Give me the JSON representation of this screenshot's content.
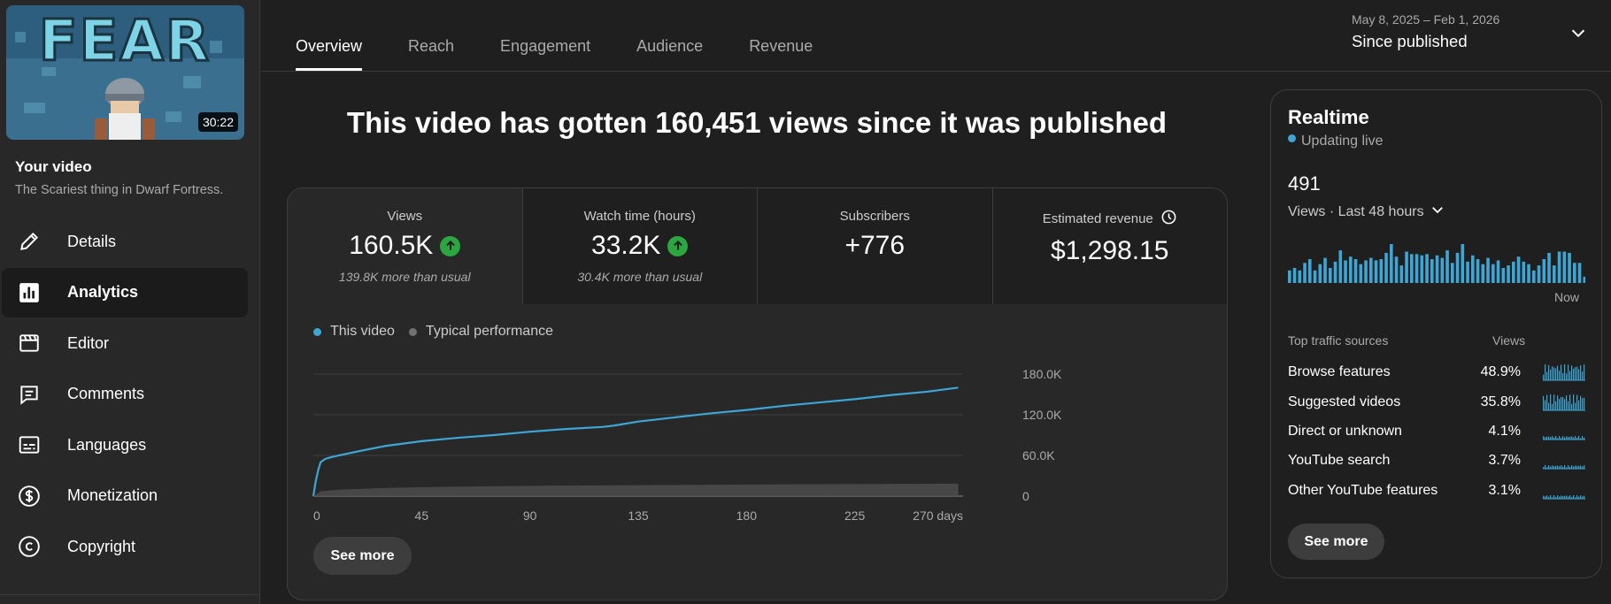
{
  "sidebar": {
    "thumbnail": {
      "logo_text": "FEAR",
      "duration": "30:22"
    },
    "your_video_label": "Your video",
    "video_title": "The Scariest thing in Dwarf Fortress.",
    "items": [
      {
        "label": "Details",
        "icon": "pencil-icon",
        "active": false
      },
      {
        "label": "Analytics",
        "icon": "analytics-icon",
        "active": true
      },
      {
        "label": "Editor",
        "icon": "clapperboard-icon",
        "active": false
      },
      {
        "label": "Comments",
        "icon": "comment-icon",
        "active": false
      },
      {
        "label": "Languages",
        "icon": "subtitles-icon",
        "active": false
      },
      {
        "label": "Monetization",
        "icon": "dollar-icon",
        "active": false
      },
      {
        "label": "Copyright",
        "icon": "copyright-icon",
        "active": false
      }
    ]
  },
  "tabs": [
    {
      "label": "Overview",
      "active": true
    },
    {
      "label": "Reach",
      "active": false
    },
    {
      "label": "Engagement",
      "active": false
    },
    {
      "label": "Audience",
      "active": false
    },
    {
      "label": "Revenue",
      "active": false
    }
  ],
  "date_picker": {
    "range": "May 8, 2025 – Feb 1, 2026",
    "label": "Since published"
  },
  "headline": "This video has gotten 160,451 views since it was published",
  "metrics": [
    {
      "label": "Views",
      "value": "160.5K",
      "trend": "up",
      "sub": "139.8K more than usual"
    },
    {
      "label": "Watch time (hours)",
      "value": "33.2K",
      "trend": "up",
      "sub": "30.4K more than usual"
    },
    {
      "label": "Subscribers",
      "value": "+776",
      "trend": "",
      "sub": ""
    },
    {
      "label": "Estimated revenue",
      "value": "$1,298.15",
      "trend": "",
      "sub": "",
      "icon": "clock-icon"
    }
  ],
  "legend": [
    {
      "label": "This video",
      "color": "#3ea6d4"
    },
    {
      "label": "Typical performance",
      "color": "#717171"
    }
  ],
  "chart_data": {
    "type": "line",
    "x_ticks": [
      "0",
      "45",
      "90",
      "135",
      "180",
      "225",
      "270 days"
    ],
    "y_ticks": [
      "0",
      "60.0K",
      "120.0K",
      "180.0K"
    ],
    "xlim": [
      0,
      270
    ],
    "ylim": [
      0,
      180000
    ],
    "series": [
      {
        "name": "This video",
        "color": "#3ea6d4",
        "x": [
          0,
          1,
          2,
          3,
          5,
          8,
          12,
          20,
          30,
          45,
          60,
          75,
          90,
          105,
          120,
          125,
          135,
          150,
          165,
          180,
          195,
          210,
          225,
          240,
          255,
          268
        ],
        "y": [
          0,
          22000,
          38000,
          50000,
          55000,
          58000,
          61000,
          67000,
          74000,
          81000,
          86000,
          90000,
          95000,
          99000,
          102000,
          104000,
          110000,
          116000,
          122000,
          127000,
          133000,
          138000,
          143000,
          149000,
          154000,
          160000
        ]
      },
      {
        "name": "Typical performance",
        "color": "#717171",
        "x": [
          0,
          3,
          10,
          30,
          60,
          100,
          150,
          200,
          268
        ],
        "y": [
          0,
          7000,
          9500,
          12000,
          14000,
          15500,
          16500,
          17500,
          18500
        ]
      }
    ]
  },
  "see_more_label": "See more",
  "realtime": {
    "title": "Realtime",
    "status": "Updating live",
    "count": "491",
    "period": "Views · Last 48 hours",
    "now_label": "Now",
    "bar_color": "#3ea6d4",
    "bars": [
      10,
      12,
      10,
      16,
      19,
      10,
      15,
      20,
      12,
      17,
      26,
      18,
      21,
      19,
      15,
      18,
      20,
      18,
      19,
      24,
      31,
      21,
      14,
      25,
      23,
      23,
      22,
      23,
      19,
      22,
      20,
      26,
      16,
      24,
      31,
      17,
      22,
      19,
      15,
      20,
      15,
      18,
      12,
      14,
      17,
      21,
      17,
      15,
      10,
      14,
      19,
      24,
      14,
      25,
      25,
      24,
      16,
      16,
      5
    ],
    "traffic_header": {
      "source": "Top traffic sources",
      "views": "Views"
    },
    "traffic": [
      {
        "source": "Browse features",
        "pct": "48.9%",
        "level": 0.489
      },
      {
        "source": "Suggested videos",
        "pct": "35.8%",
        "level": 0.358
      },
      {
        "source": "Direct or unknown",
        "pct": "4.1%",
        "level": 0.041
      },
      {
        "source": "YouTube search",
        "pct": "3.7%",
        "level": 0.037
      },
      {
        "source": "Other YouTube features",
        "pct": "3.1%",
        "level": 0.031
      }
    ]
  }
}
